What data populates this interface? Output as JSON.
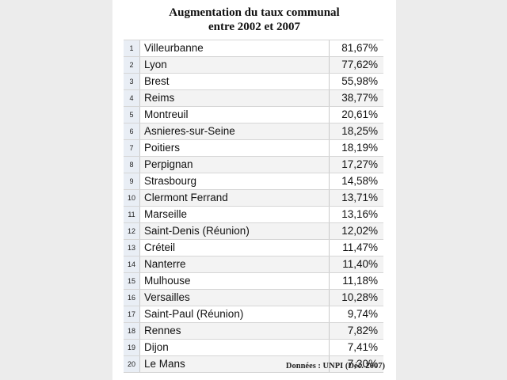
{
  "title": {
    "line1": "Augmentation du taux communal",
    "line2": "entre 2002 et 2007"
  },
  "rows": [
    {
      "rank": "1",
      "city": "Villeurbanne",
      "value": "81,67%"
    },
    {
      "rank": "2",
      "city": "Lyon",
      "value": "77,62%"
    },
    {
      "rank": "3",
      "city": "Brest",
      "value": "55,98%"
    },
    {
      "rank": "4",
      "city": "Reims",
      "value": "38,77%"
    },
    {
      "rank": "5",
      "city": "Montreuil",
      "value": "20,61%"
    },
    {
      "rank": "6",
      "city": "Asnieres-sur-Seine",
      "value": "18,25%"
    },
    {
      "rank": "7",
      "city": "Poitiers",
      "value": "18,19%"
    },
    {
      "rank": "8",
      "city": "Perpignan",
      "value": "17,27%"
    },
    {
      "rank": "9",
      "city": "Strasbourg",
      "value": "14,58%"
    },
    {
      "rank": "10",
      "city": "Clermont Ferrand",
      "value": "13,71%"
    },
    {
      "rank": "11",
      "city": "Marseille",
      "value": "13,16%"
    },
    {
      "rank": "12",
      "city": "Saint-Denis (Réunion)",
      "value": "12,02%"
    },
    {
      "rank": "13",
      "city": "Créteil",
      "value": "11,47%"
    },
    {
      "rank": "14",
      "city": "Nanterre",
      "value": "11,40%"
    },
    {
      "rank": "15",
      "city": "Mulhouse",
      "value": "11,18%"
    },
    {
      "rank": "16",
      "city": "Versailles",
      "value": "10,28%"
    },
    {
      "rank": "17",
      "city": "Saint-Paul (Réunion)",
      "value": "9,74%"
    },
    {
      "rank": "18",
      "city": "Rennes",
      "value": "7,82%"
    },
    {
      "rank": "19",
      "city": "Dijon",
      "value": "7,41%"
    },
    {
      "rank": "20",
      "city": "Le Mans",
      "value": "7,30%"
    }
  ],
  "source": "Données : UNPI (Déc. 2007)"
}
